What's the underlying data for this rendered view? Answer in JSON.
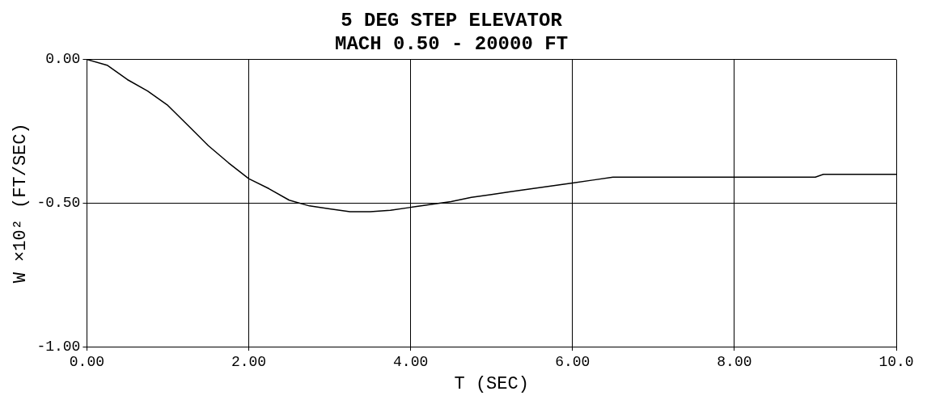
{
  "chart_data": {
    "type": "line",
    "title": [
      "5 DEG STEP ELEVATOR",
      "MACH 0.50 - 20000 FT"
    ],
    "xlabel": "T (SEC)",
    "ylabel": "W ×10² (FT/SEC)",
    "xlim": [
      0,
      10
    ],
    "ylim": [
      -1,
      0
    ],
    "xticks": [
      {
        "value": 0,
        "label": "0.00"
      },
      {
        "value": 2,
        "label": "2.00"
      },
      {
        "value": 4,
        "label": "4.00"
      },
      {
        "value": 6,
        "label": "6.00"
      },
      {
        "value": 8,
        "label": "8.00"
      },
      {
        "value": 10,
        "label": "10.0"
      }
    ],
    "yticks": [
      {
        "value": -1,
        "label": "-1.00"
      },
      {
        "value": -0.5,
        "label": "-0.50"
      },
      {
        "value": 0,
        "label": "0.00"
      }
    ],
    "grid": true,
    "marker": "none",
    "line_style": "solid",
    "series": [
      {
        "color": "#000000",
        "x": [
          0,
          0.25,
          0.5,
          0.75,
          1,
          1.25,
          1.5,
          1.75,
          2,
          2.25,
          2.5,
          2.75,
          3,
          3.25,
          3.5,
          3.75,
          4,
          4.25,
          4.5,
          4.75,
          5,
          5.25,
          5.5,
          5.75,
          6,
          6.25,
          6.5,
          7,
          7.5,
          8,
          8.5,
          9,
          9.1,
          9.5,
          10
        ],
        "values": [
          0,
          -0.02,
          -0.07,
          -0.11,
          -0.16,
          -0.23,
          -0.3,
          -0.36,
          -0.415,
          -0.45,
          -0.49,
          -0.51,
          -0.52,
          -0.53,
          -0.53,
          -0.525,
          -0.515,
          -0.505,
          -0.495,
          -0.48,
          -0.47,
          -0.46,
          -0.45,
          -0.44,
          -0.43,
          -0.42,
          -0.41,
          -0.41,
          -0.41,
          -0.41,
          -0.41,
          -0.41,
          -0.4,
          -0.4,
          -0.4
        ]
      }
    ]
  }
}
